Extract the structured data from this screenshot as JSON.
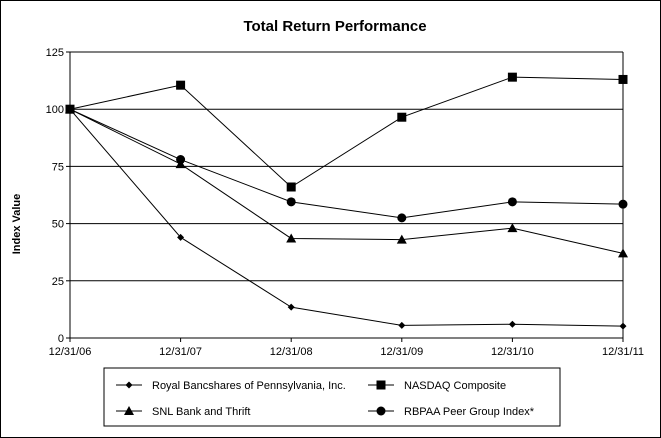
{
  "chart_data": {
    "type": "line",
    "title": "Total Return Performance",
    "ylabel": "Index Value",
    "xlabel": "",
    "categories": [
      "12/31/06",
      "12/31/07",
      "12/31/08",
      "12/31/09",
      "12/31/10",
      "12/31/11"
    ],
    "ylim": [
      0,
      125
    ],
    "yticks": [
      0,
      25,
      50,
      75,
      100,
      125
    ],
    "grid": true,
    "legend": "bottom",
    "series": [
      {
        "name": "Royal Bancshares of Pennsylvania, Inc.",
        "marker": "diamond",
        "values": [
          100,
          44,
          13.5,
          5.5,
          6,
          5.2
        ]
      },
      {
        "name": "NASDAQ Composite",
        "marker": "square",
        "values": [
          100,
          110.5,
          66,
          96.5,
          114,
          113
        ]
      },
      {
        "name": "SNL Bank and Thrift",
        "marker": "triangle",
        "values": [
          100,
          76,
          43.5,
          43,
          48,
          37
        ]
      },
      {
        "name": "RBPAA Peer Group Index*",
        "marker": "circle",
        "values": [
          100,
          78,
          59.5,
          52.5,
          59.5,
          58.5
        ]
      }
    ]
  }
}
